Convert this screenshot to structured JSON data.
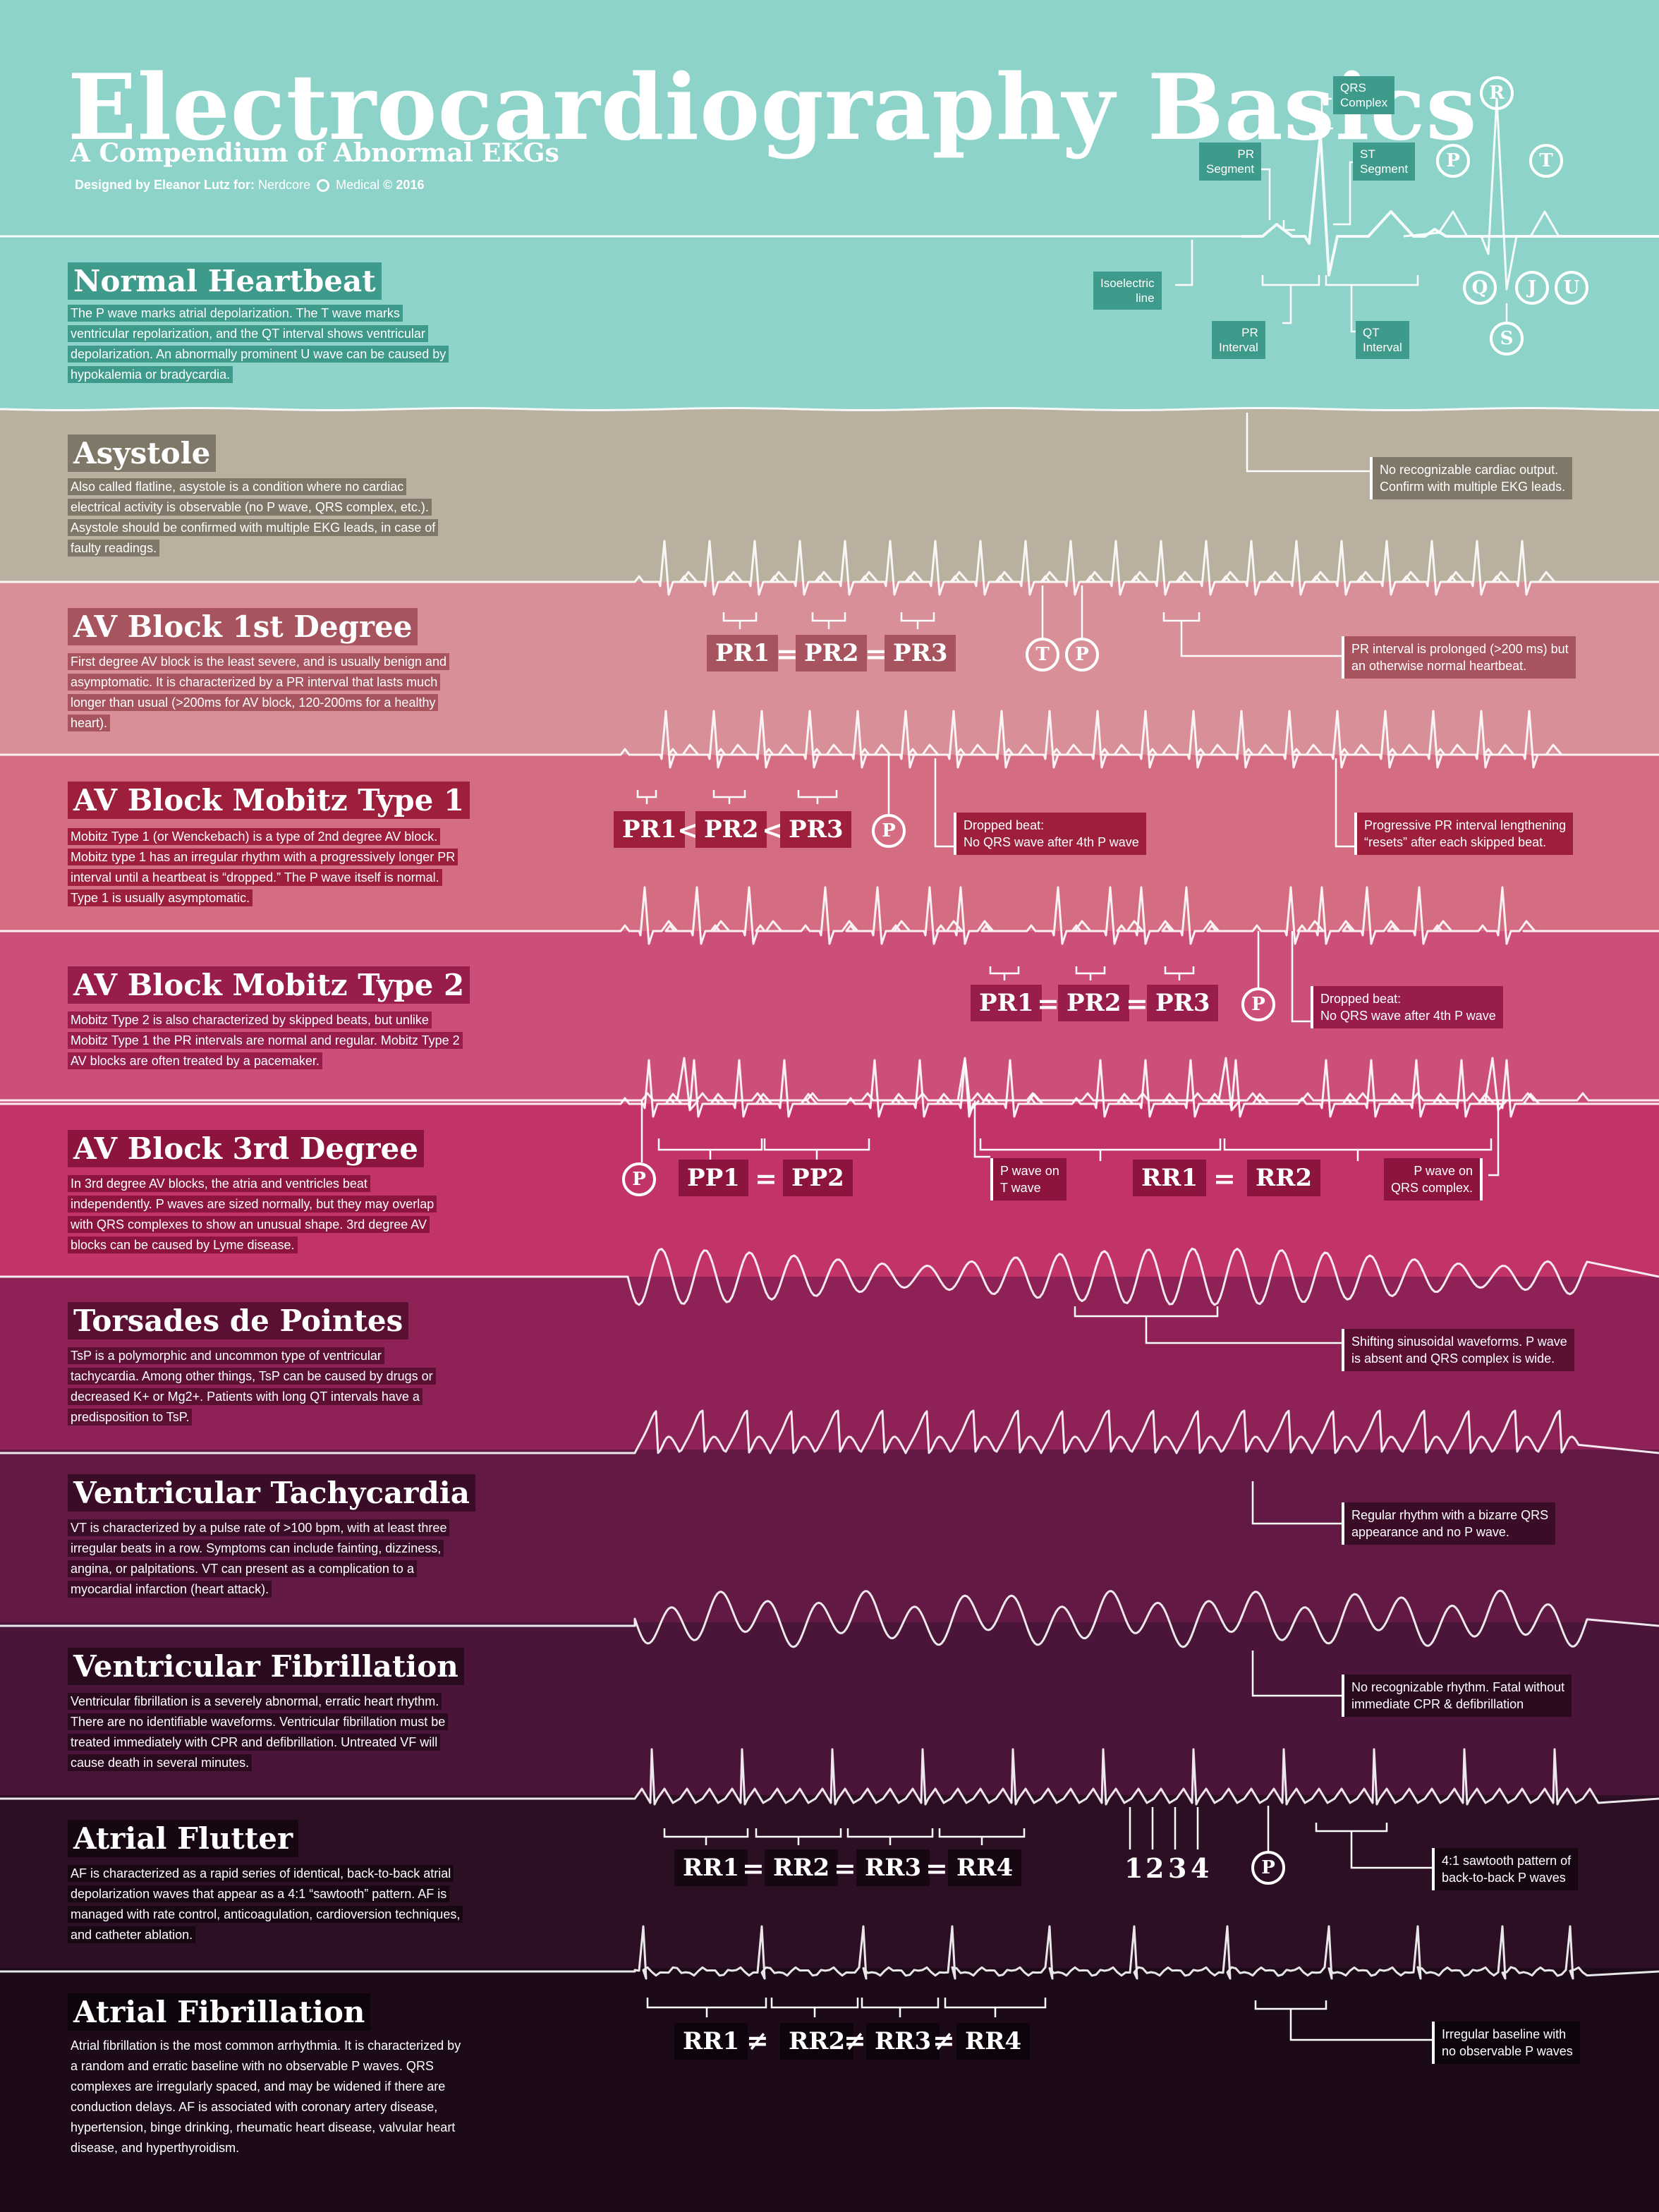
{
  "header": {
    "title": "Electrocardiography Basics",
    "subtitle": "A Compendium of Abnormal EKGs",
    "credit_prefix": "Designed by Eleanor Lutz for:",
    "credit_org_a": "Nerdcore",
    "credit_org_b": "Medical",
    "credit_year": "© 2016",
    "diagram_labels": {
      "qrs_complex": "QRS\nComplex",
      "pr_segment": "PR\nSegment",
      "st_segment": "ST\nSegment",
      "isoelectric": "Isoelectric\nline",
      "pr_interval": "PR\nInterval",
      "qt_interval": "QT\nInterval"
    },
    "wave_letters": {
      "R": "R",
      "P": "P",
      "T": "T",
      "Q": "Q",
      "J": "J",
      "U": "U",
      "S": "S"
    }
  },
  "colors": {
    "normal": "#8ed3c9",
    "asystole": "#b9b0a0",
    "av1": "#d88f98",
    "mobitz1": "#d46d82",
    "mobitz2": "#cc4f79",
    "av3": "#c23468",
    "torsades": "#8e2256",
    "vtach": "#621a45",
    "vfib": "#4a1538",
    "aflutter": "#2c0f24",
    "afib": "#1d0a18"
  },
  "sections": {
    "normal": {
      "title": "Normal Heartbeat",
      "desc": [
        "The P wave marks atrial depolarization. The T wave marks",
        "ventricular repolarization, and the QT interval shows ventricular",
        "depolarization. An abnormally prominent U wave can be caused by",
        "hypokalemia or bradycardia."
      ]
    },
    "asystole": {
      "title": "Asystole",
      "desc": [
        "Also called flatline, asystole is a condition where no cardiac",
        "electrical activity is observable (no P wave, QRS complex, etc.).",
        "Asystole should be confirmed with multiple EKG leads, in case of",
        "faulty readings."
      ],
      "note": "No recognizable cardiac output.\nConfirm with multiple EKG leads."
    },
    "av1": {
      "title": "AV Block 1st Degree",
      "desc": [
        "First degree AV block is the least severe, and is usually benign and",
        "asymptomatic. It is characterized by a PR interval that lasts much",
        "longer than usual (>200ms for AV block, 120-200ms for a healthy",
        "heart)."
      ],
      "labels": [
        "PR1",
        "PR2",
        "PR3"
      ],
      "ops": [
        "=",
        "="
      ],
      "circles": [
        "T",
        "P"
      ],
      "note": "PR interval is prolonged (>200 ms) but\nan otherwise normal heartbeat."
    },
    "mobitz1": {
      "title": "AV Block Mobitz Type 1",
      "desc": [
        "Mobitz Type 1 (or Wenckebach) is a type of 2nd degree AV block.",
        "Mobitz type 1 has an irregular rhythm with a progressively longer PR",
        "interval until a heartbeat is “dropped.” The P wave itself is normal.",
        "Type 1 is usually asymptomatic."
      ],
      "labels": [
        "PR1",
        "PR2",
        "PR3"
      ],
      "ops": [
        "<",
        "<"
      ],
      "circle": "P",
      "note1": "Dropped beat:\nNo QRS wave after 4th P wave",
      "note2": "Progressive PR interval lengthening\n“resets” after each skipped beat."
    },
    "mobitz2": {
      "title": "AV Block Mobitz Type 2",
      "desc": [
        "Mobitz Type 2 is also characterized by skipped beats, but unlike",
        "Mobitz Type 1 the PR intervals are normal and regular. Mobitz Type 2",
        "AV blocks are often treated by a pacemaker."
      ],
      "labels": [
        "PR1",
        "PR2",
        "PR3"
      ],
      "ops": [
        "=",
        "="
      ],
      "circle": "P",
      "note": "Dropped beat:\nNo QRS wave after 4th P wave"
    },
    "av3": {
      "title": "AV Block 3rd Degree",
      "desc": [
        "In 3rd degree AV blocks, the atria and ventricles beat",
        "independently. P waves are sized normally, but they may overlap",
        "with QRS complexes to show an unusual shape. 3rd degree AV",
        "blocks can be caused by Lyme disease."
      ],
      "circle": "P",
      "labels_pp": [
        "PP1",
        "PP2"
      ],
      "labels_rr": [
        "RR1",
        "RR2"
      ],
      "ops": [
        "=",
        "="
      ],
      "note1": "P wave on\nT wave",
      "note2": "P wave on\nQRS complex."
    },
    "torsades": {
      "title": "Torsades de Pointes",
      "desc": [
        "TsP is a polymorphic and uncommon type of ventricular",
        "tachycardia. Among other things, TsP can be caused by drugs or",
        "decreased K+ or Mg2+. Patients with long QT intervals have a",
        "predisposition to TsP."
      ],
      "note": "Shifting sinusoidal waveforms. P wave\nis absent and QRS complex is wide."
    },
    "vtach": {
      "title": "Ventricular Tachycardia",
      "desc": [
        "VT is characterized by a pulse rate of >100 bpm, with at least three",
        "irregular beats in a row. Symptoms can include fainting, dizziness,",
        "angina, or palpitations. VT can present as a complication to a",
        "myocardial infarction (heart attack)."
      ],
      "note": "Regular rhythm with a bizarre QRS\nappearance and no P wave."
    },
    "vfib": {
      "title": "Ventricular Fibrillation",
      "desc": [
        "Ventricular fibrillation is a severely abnormal, erratic heart rhythm.",
        "There are no identifiable waveforms. Ventricular fibrillation must be",
        "treated immediately with CPR and defibrillation. Untreated VF will",
        "cause death in several minutes."
      ],
      "note": "No recognizable rhythm. Fatal without\nimmediate CPR & defibrillation"
    },
    "aflutter": {
      "title": "Atrial Flutter",
      "desc": [
        "AF is characterized as a rapid series of identical, back-to-back atrial",
        "depolarization waves that appear as a 4:1 “sawtooth” pattern. AF is",
        "managed with rate control, anticoagulation, cardioversion techniques,",
        "and catheter ablation."
      ],
      "labels": [
        "RR1",
        "RR2",
        "RR3",
        "RR4"
      ],
      "ops": [
        "=",
        "=",
        "="
      ],
      "counts": [
        "1",
        "2",
        "3",
        "4"
      ],
      "circle": "P",
      "note": "4:1 sawtooth pattern of\nback-to-back P waves"
    },
    "afib": {
      "title": "Atrial Fibrillation",
      "desc": [
        "Atrial fibrillation is the most common arrhythmia. It is characterized by",
        "a random and erratic baseline with no observable P waves. QRS",
        "complexes are irregularly spaced, and may be widened if there are",
        "conduction delays. AF is associated with coronary artery disease,",
        "hypertension, binge drinking, rheumatic heart disease, valvular heart",
        "disease, and hyperthyroidism."
      ],
      "labels": [
        "RR1",
        "RR2",
        "RR3",
        "RR4"
      ],
      "ops": [
        "≠",
        "≠",
        "≠"
      ],
      "note": "Irregular baseline with\nno observable P waves"
    }
  }
}
